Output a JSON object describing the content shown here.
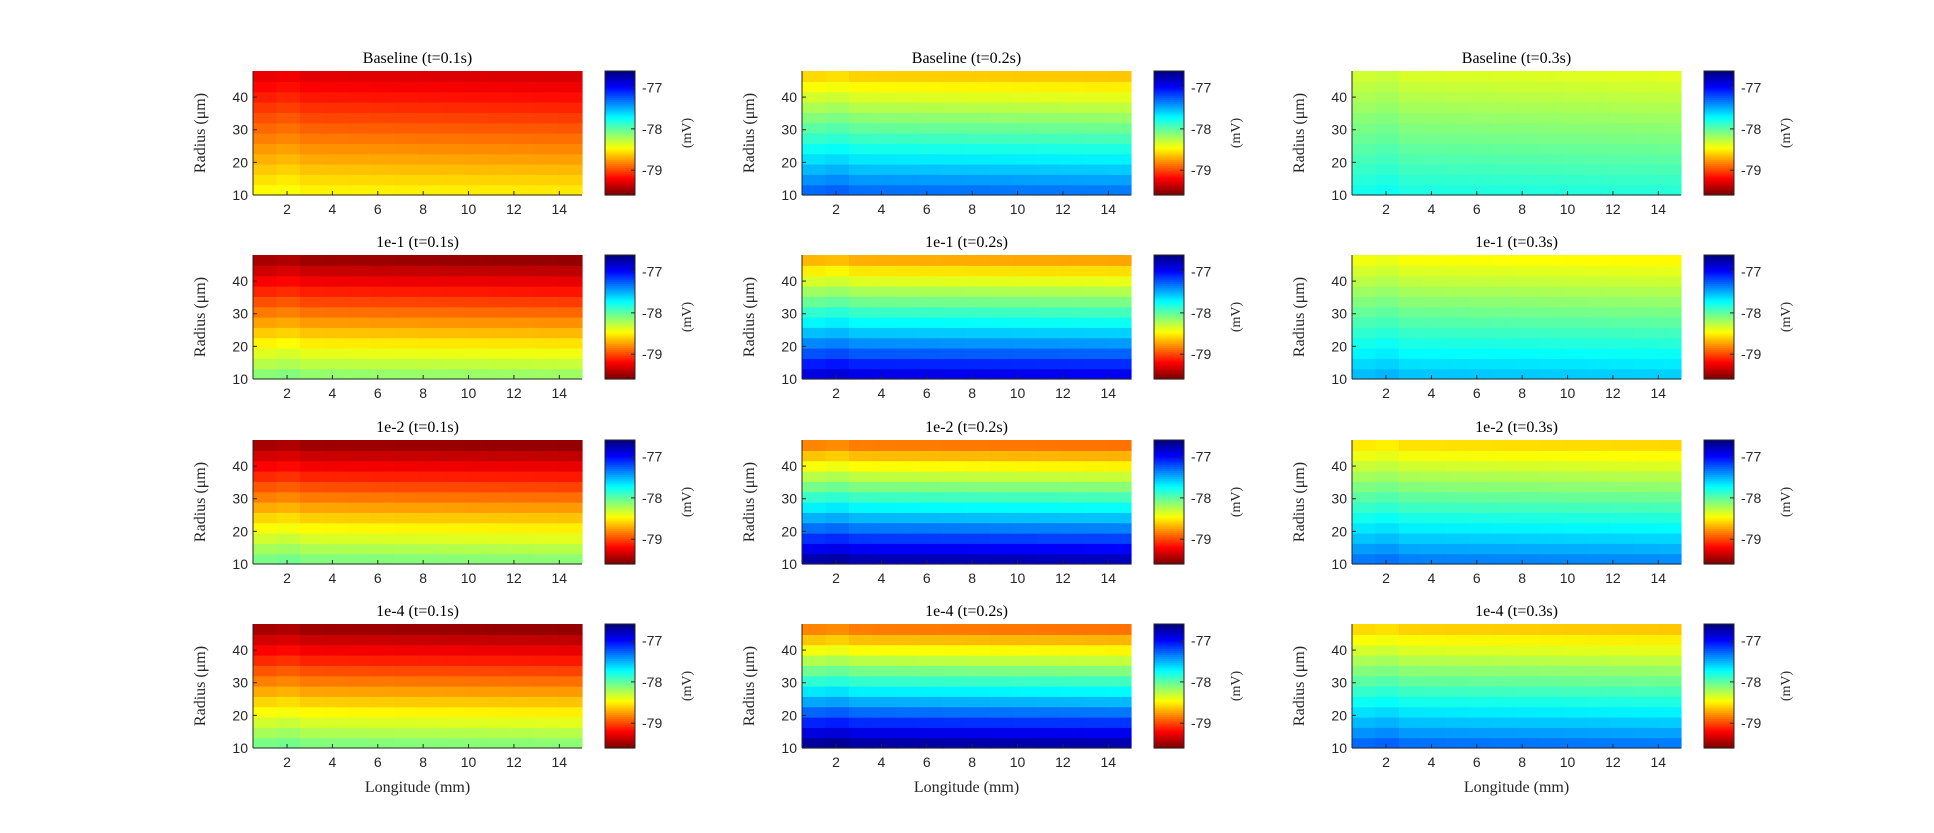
{
  "figure": {
    "xlabel": "Longitude (mm)",
    "ylabel": "Radius (μm)",
    "colorbar_label": "(mV)",
    "colormap": "jet"
  },
  "chart_data": {
    "type": "heatmap",
    "x": {
      "label": "Longitude (mm)",
      "range": [
        0.5,
        15
      ],
      "ticks": [
        2,
        4,
        6,
        8,
        10,
        12,
        14
      ],
      "bins": 14
    },
    "y": {
      "label": "Radius (μm)",
      "range": [
        10,
        48
      ],
      "ticks": [
        10,
        20,
        30,
        40
      ],
      "bins": 12
    },
    "colorbar": {
      "label": "(mV)",
      "ticks": [
        -77,
        -78,
        -79
      ],
      "range": [
        -79.6,
        -76.6
      ],
      "colormap": "jet"
    },
    "panels": [
      {
        "title": "Baseline (t=0.1s)",
        "row": 0,
        "col": 0,
        "v_bottom": -78.5,
        "v_top": -79.3
      },
      {
        "title": "Baseline (t=0.2s)",
        "row": 0,
        "col": 1,
        "v_bottom": -77.3,
        "v_top": -78.6
      },
      {
        "title": "Baseline (t=0.3s)",
        "row": 0,
        "col": 2,
        "v_bottom": -77.8,
        "v_top": -78.35
      },
      {
        "title": "1e-1 (t=0.1s)",
        "row": 1,
        "col": 0,
        "v_bottom": -78.15,
        "v_top": -79.5
      },
      {
        "title": "1e-1 (t=0.2s)",
        "row": 1,
        "col": 1,
        "v_bottom": -76.9,
        "v_top": -78.7
      },
      {
        "title": "1e-1 (t=0.3s)",
        "row": 1,
        "col": 2,
        "v_bottom": -77.55,
        "v_top": -78.45
      },
      {
        "title": "1e-2 (t=0.1s)",
        "row": 2,
        "col": 0,
        "v_bottom": -78.1,
        "v_top": -79.5
      },
      {
        "title": "1e-2 (t=0.2s)",
        "row": 2,
        "col": 1,
        "v_bottom": -76.75,
        "v_top": -78.85
      },
      {
        "title": "1e-2 (t=0.3s)",
        "row": 2,
        "col": 2,
        "v_bottom": -77.35,
        "v_top": -78.55
      },
      {
        "title": "1e-4 (t=0.1s)",
        "row": 3,
        "col": 0,
        "v_bottom": -78.1,
        "v_top": -79.5
      },
      {
        "title": "1e-4 (t=0.2s)",
        "row": 3,
        "col": 1,
        "v_bottom": -76.7,
        "v_top": -78.85
      },
      {
        "title": "1e-4 (t=0.3s)",
        "row": 3,
        "col": 2,
        "v_bottom": -77.3,
        "v_top": -78.6
      }
    ]
  }
}
